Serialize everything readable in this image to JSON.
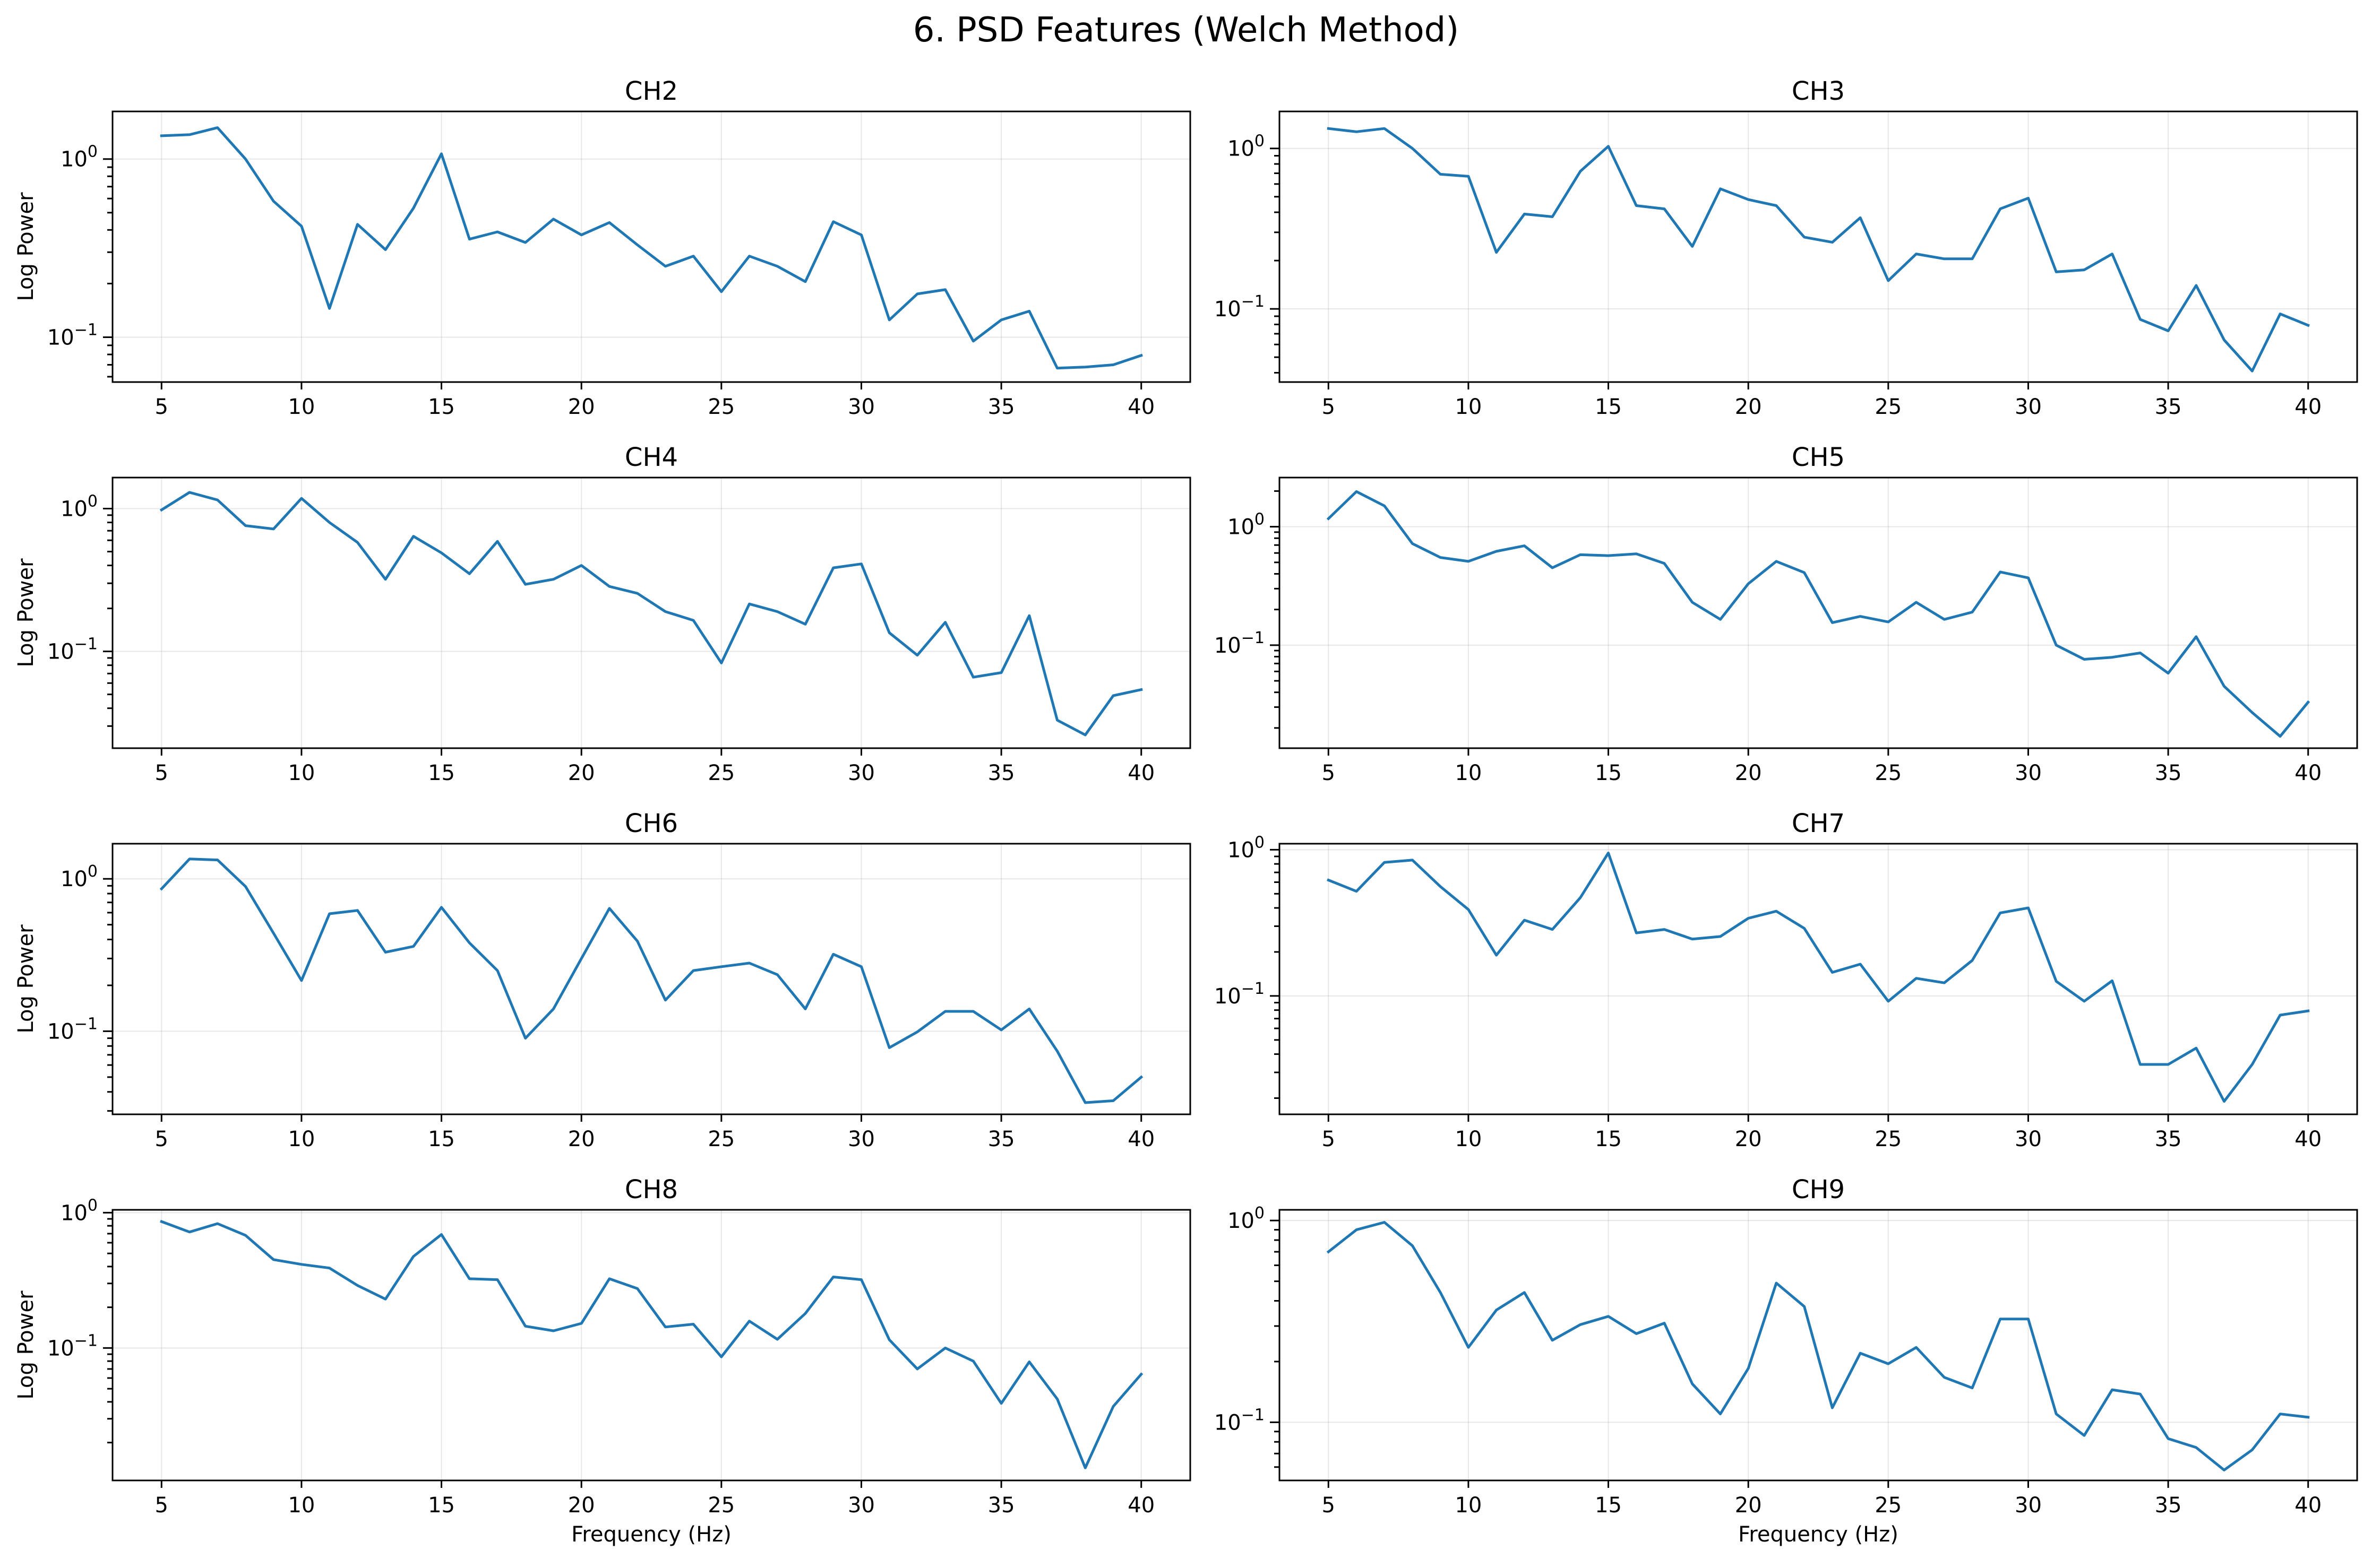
{
  "figure": {
    "title": "6. PSD Features (Welch Method)"
  },
  "style": {
    "line_color": "#1f77b4"
  },
  "chart_data": [
    {
      "type": "line",
      "title": "CH2",
      "xlabel": "",
      "ylabel": "Log Power",
      "yscale": "log",
      "grid": true,
      "xlim": [
        3.25,
        41.75
      ],
      "ylim": [
        0.056,
        1.85
      ],
      "xticks": [
        5,
        10,
        15,
        20,
        25,
        30,
        35,
        40
      ],
      "yticks": [
        {
          "value": 0.1,
          "base": "10",
          "exp": "−1"
        },
        {
          "value": 1,
          "base": "10",
          "exp": "0"
        }
      ],
      "x": [
        5,
        6,
        7,
        8,
        9,
        10,
        11,
        12,
        13,
        14,
        15,
        16,
        17,
        18,
        19,
        20,
        21,
        22,
        23,
        24,
        25,
        26,
        27,
        28,
        29,
        30,
        31,
        32,
        33,
        34,
        35,
        36,
        37,
        38,
        39,
        40
      ],
      "y": [
        1.35,
        1.37,
        1.5,
        1.0,
        0.58,
        0.42,
        0.145,
        0.43,
        0.31,
        0.53,
        1.07,
        0.355,
        0.39,
        0.34,
        0.46,
        0.375,
        0.44,
        0.33,
        0.25,
        0.285,
        0.18,
        0.285,
        0.25,
        0.205,
        0.445,
        0.375,
        0.125,
        0.175,
        0.185,
        0.095,
        0.125,
        0.14,
        0.067,
        0.068,
        0.07,
        0.079
      ]
    },
    {
      "type": "line",
      "title": "CH3",
      "xlabel": "",
      "ylabel": "",
      "yscale": "log",
      "grid": true,
      "xlim": [
        3.25,
        41.75
      ],
      "ylim": [
        0.035,
        1.7
      ],
      "xticks": [
        5,
        10,
        15,
        20,
        25,
        30,
        35,
        40
      ],
      "yticks": [
        {
          "value": 0.1,
          "base": "10",
          "exp": "−1"
        },
        {
          "value": 1,
          "base": "10",
          "exp": "0"
        }
      ],
      "x": [
        5,
        6,
        7,
        8,
        9,
        10,
        11,
        12,
        13,
        14,
        15,
        16,
        17,
        18,
        19,
        20,
        21,
        22,
        23,
        24,
        25,
        26,
        27,
        28,
        29,
        30,
        31,
        32,
        33,
        34,
        35,
        36,
        37,
        38,
        39,
        40
      ],
      "y": [
        1.33,
        1.27,
        1.33,
        1.0,
        0.69,
        0.67,
        0.225,
        0.39,
        0.375,
        0.72,
        1.03,
        0.44,
        0.42,
        0.245,
        0.56,
        0.48,
        0.44,
        0.28,
        0.26,
        0.37,
        0.15,
        0.22,
        0.205,
        0.205,
        0.42,
        0.49,
        0.17,
        0.175,
        0.22,
        0.086,
        0.073,
        0.14,
        0.064,
        0.041,
        0.093,
        0.079
      ]
    },
    {
      "type": "line",
      "title": "CH4",
      "xlabel": "",
      "ylabel": "Log Power",
      "yscale": "log",
      "grid": true,
      "xlim": [
        3.25,
        41.75
      ],
      "ylim": [
        0.021,
        1.65
      ],
      "xticks": [
        5,
        10,
        15,
        20,
        25,
        30,
        35,
        40
      ],
      "yticks": [
        {
          "value": 0.1,
          "base": "10",
          "exp": "−1"
        },
        {
          "value": 1,
          "base": "10",
          "exp": "0"
        }
      ],
      "x": [
        5,
        6,
        7,
        8,
        9,
        10,
        11,
        12,
        13,
        14,
        15,
        16,
        17,
        18,
        19,
        20,
        21,
        22,
        23,
        24,
        25,
        26,
        27,
        28,
        29,
        30,
        31,
        32,
        33,
        34,
        35,
        36,
        37,
        38,
        39,
        40
      ],
      "y": [
        0.98,
        1.3,
        1.15,
        0.76,
        0.72,
        1.18,
        0.8,
        0.58,
        0.32,
        0.64,
        0.49,
        0.35,
        0.59,
        0.295,
        0.32,
        0.4,
        0.285,
        0.255,
        0.19,
        0.165,
        0.083,
        0.215,
        0.19,
        0.155,
        0.385,
        0.41,
        0.135,
        0.094,
        0.16,
        0.066,
        0.071,
        0.178,
        0.033,
        0.026,
        0.049,
        0.054
      ]
    },
    {
      "type": "line",
      "title": "CH5",
      "xlabel": "",
      "ylabel": "",
      "yscale": "log",
      "grid": true,
      "xlim": [
        3.25,
        41.75
      ],
      "ylim": [
        0.0135,
        2.6
      ],
      "xticks": [
        5,
        10,
        15,
        20,
        25,
        30,
        35,
        40
      ],
      "yticks": [
        {
          "value": 0.1,
          "base": "10",
          "exp": "−1"
        },
        {
          "value": 1,
          "base": "10",
          "exp": "0"
        }
      ],
      "x": [
        5,
        6,
        7,
        8,
        9,
        10,
        11,
        12,
        13,
        14,
        15,
        16,
        17,
        18,
        19,
        20,
        21,
        22,
        23,
        24,
        25,
        26,
        27,
        28,
        29,
        30,
        31,
        32,
        33,
        34,
        35,
        36,
        37,
        38,
        39,
        40
      ],
      "y": [
        1.17,
        1.98,
        1.5,
        0.72,
        0.55,
        0.51,
        0.62,
        0.69,
        0.45,
        0.58,
        0.57,
        0.59,
        0.49,
        0.23,
        0.165,
        0.33,
        0.51,
        0.41,
        0.155,
        0.175,
        0.157,
        0.23,
        0.165,
        0.19,
        0.415,
        0.37,
        0.1,
        0.076,
        0.079,
        0.086,
        0.058,
        0.118,
        0.045,
        0.027,
        0.017,
        0.033
      ]
    },
    {
      "type": "line",
      "title": "CH6",
      "xlabel": "",
      "ylabel": "Log Power",
      "yscale": "log",
      "grid": true,
      "xlim": [
        3.25,
        41.75
      ],
      "ylim": [
        0.0285,
        1.7
      ],
      "xticks": [
        5,
        10,
        15,
        20,
        25,
        30,
        35,
        40
      ],
      "yticks": [
        {
          "value": 0.1,
          "base": "10",
          "exp": "−1"
        },
        {
          "value": 1,
          "base": "10",
          "exp": "0"
        }
      ],
      "x": [
        5,
        6,
        7,
        8,
        9,
        10,
        11,
        12,
        13,
        14,
        15,
        16,
        17,
        18,
        19,
        20,
        21,
        22,
        23,
        24,
        25,
        26,
        27,
        28,
        29,
        30,
        31,
        32,
        33,
        34,
        35,
        36,
        37,
        38,
        39,
        40
      ],
      "y": [
        0.86,
        1.35,
        1.33,
        0.89,
        0.44,
        0.215,
        0.59,
        0.62,
        0.33,
        0.36,
        0.65,
        0.38,
        0.25,
        0.09,
        0.14,
        0.3,
        0.64,
        0.39,
        0.16,
        0.25,
        0.265,
        0.28,
        0.235,
        0.14,
        0.32,
        0.265,
        0.078,
        0.099,
        0.135,
        0.135,
        0.102,
        0.14,
        0.074,
        0.034,
        0.035,
        0.05
      ]
    },
    {
      "type": "line",
      "title": "CH7",
      "xlabel": "",
      "ylabel": "",
      "yscale": "log",
      "grid": true,
      "xlim": [
        3.25,
        41.75
      ],
      "ylim": [
        0.0155,
        1.1
      ],
      "xticks": [
        5,
        10,
        15,
        20,
        25,
        30,
        35,
        40
      ],
      "yticks": [
        {
          "value": 0.1,
          "base": "10",
          "exp": "−1"
        },
        {
          "value": 1,
          "base": "10",
          "exp": "0"
        }
      ],
      "x": [
        5,
        6,
        7,
        8,
        9,
        10,
        11,
        12,
        13,
        14,
        15,
        16,
        17,
        18,
        19,
        20,
        21,
        22,
        23,
        24,
        25,
        26,
        27,
        28,
        29,
        30,
        31,
        32,
        33,
        34,
        35,
        36,
        37,
        38,
        39,
        40
      ],
      "y": [
        0.62,
        0.52,
        0.82,
        0.85,
        0.56,
        0.39,
        0.19,
        0.33,
        0.285,
        0.47,
        0.95,
        0.27,
        0.285,
        0.245,
        0.255,
        0.34,
        0.38,
        0.29,
        0.145,
        0.165,
        0.092,
        0.132,
        0.123,
        0.175,
        0.37,
        0.4,
        0.126,
        0.092,
        0.127,
        0.034,
        0.034,
        0.044,
        0.019,
        0.034,
        0.074,
        0.079
      ]
    },
    {
      "type": "line",
      "title": "CH8",
      "xlabel": "Frequency (Hz)",
      "ylabel": "Log Power",
      "yscale": "log",
      "grid": true,
      "xlim": [
        3.25,
        41.75
      ],
      "ylim": [
        0.0105,
        1.05
      ],
      "xticks": [
        5,
        10,
        15,
        20,
        25,
        30,
        35,
        40
      ],
      "yticks": [
        {
          "value": 0.1,
          "base": "10",
          "exp": "−1"
        },
        {
          "value": 1,
          "base": "10",
          "exp": "0"
        }
      ],
      "x": [
        5,
        6,
        7,
        8,
        9,
        10,
        11,
        12,
        13,
        14,
        15,
        16,
        17,
        18,
        19,
        20,
        21,
        22,
        23,
        24,
        25,
        26,
        27,
        28,
        29,
        30,
        31,
        32,
        33,
        34,
        35,
        36,
        37,
        38,
        39,
        40
      ],
      "y": [
        0.86,
        0.72,
        0.83,
        0.68,
        0.45,
        0.415,
        0.39,
        0.29,
        0.23,
        0.475,
        0.69,
        0.325,
        0.32,
        0.145,
        0.134,
        0.152,
        0.325,
        0.275,
        0.143,
        0.15,
        0.086,
        0.158,
        0.116,
        0.18,
        0.335,
        0.32,
        0.115,
        0.07,
        0.1,
        0.08,
        0.039,
        0.079,
        0.042,
        0.013,
        0.037,
        0.064
      ]
    },
    {
      "type": "line",
      "title": "CH9",
      "xlabel": "Frequency (Hz)",
      "ylabel": "",
      "yscale": "log",
      "grid": true,
      "xlim": [
        3.25,
        41.75
      ],
      "ylim": [
        0.0515,
        1.13
      ],
      "xticks": [
        5,
        10,
        15,
        20,
        25,
        30,
        35,
        40
      ],
      "yticks": [
        {
          "value": 0.1,
          "base": "10",
          "exp": "−1"
        },
        {
          "value": 1,
          "base": "10",
          "exp": "0"
        }
      ],
      "x": [
        5,
        6,
        7,
        8,
        9,
        10,
        11,
        12,
        13,
        14,
        15,
        16,
        17,
        18,
        19,
        20,
        21,
        22,
        23,
        24,
        25,
        26,
        27,
        28,
        29,
        30,
        31,
        32,
        33,
        34,
        35,
        36,
        37,
        38,
        39,
        40
      ],
      "y": [
        0.7,
        0.9,
        0.98,
        0.75,
        0.44,
        0.235,
        0.36,
        0.44,
        0.255,
        0.305,
        0.335,
        0.275,
        0.31,
        0.155,
        0.11,
        0.185,
        0.49,
        0.375,
        0.118,
        0.22,
        0.195,
        0.235,
        0.167,
        0.148,
        0.325,
        0.325,
        0.11,
        0.086,
        0.145,
        0.138,
        0.083,
        0.075,
        0.058,
        0.073,
        0.11,
        0.106
      ]
    }
  ]
}
